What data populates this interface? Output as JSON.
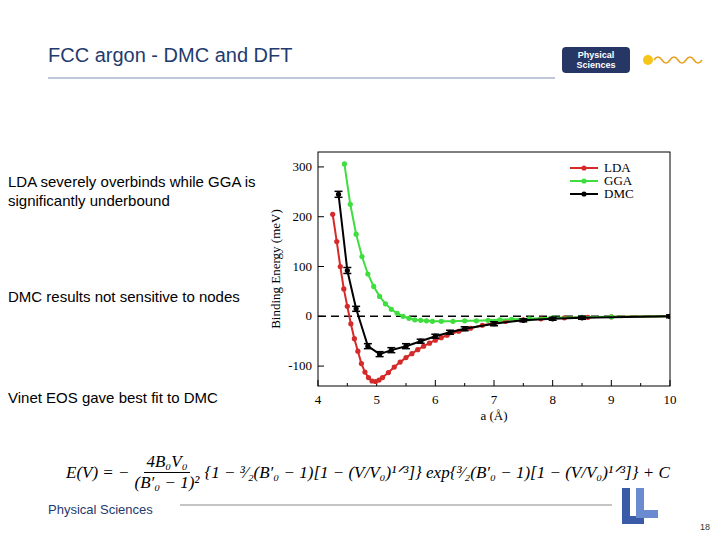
{
  "slide": {
    "title": "FCC argon - DMC and DFT",
    "logo": [
      "Physical",
      "Sciences"
    ],
    "bullets": [
      "LDA severely overbinds while GGA is significantly underbound",
      "DMC results not sensitive to nodes",
      "Vinet EOS gave best fit to DMC"
    ],
    "equation": {
      "lhs": "E(V) = −",
      "num": "4B₀V₀",
      "den": "(B′₀ − 1)²",
      "body": "{1 − ³⁄₂(B′₀ − 1)[1 − (V/V₀)¹ᐟ³]} exp{³⁄₂(B′₀ − 1)[1 − (V/V₀)¹ᐟ³]} + C"
    },
    "footer": "Physical Sciences",
    "page": 18
  },
  "chart_data": {
    "type": "line",
    "x_label": "a (Å)",
    "y_label": "Binding Energy (meV)",
    "xlim": [
      4,
      10
    ],
    "xticks": [
      4,
      5,
      6,
      7,
      8,
      9,
      10
    ],
    "ylim": [
      -140,
      330
    ],
    "yticks": [
      -100,
      0,
      100,
      200,
      300
    ],
    "hline": 0,
    "grid": false,
    "legend": "upper right",
    "series": [
      {
        "name": "LDA",
        "color": "#d42a2a",
        "marker": "circle",
        "line_style": "solid",
        "x": [
          4.25,
          4.32,
          4.38,
          4.44,
          4.5,
          4.56,
          4.62,
          4.68,
          4.74,
          4.8,
          4.86,
          4.92,
          4.98,
          5.04,
          5.1,
          5.2,
          5.3,
          5.4,
          5.5,
          5.6,
          5.7,
          5.8,
          5.9,
          6.0,
          6.1,
          6.2,
          6.4,
          6.6,
          6.8,
          7.0,
          7.2,
          7.5,
          7.8,
          8.2,
          8.6,
          9.0,
          10
        ],
        "values": [
          205,
          150,
          100,
          55,
          20,
          -15,
          -45,
          -70,
          -95,
          -112,
          -123,
          -130,
          -131,
          -128,
          -123,
          -113,
          -102,
          -92,
          -83,
          -75,
          -67,
          -60,
          -54,
          -48,
          -43,
          -38,
          -30,
          -24,
          -18,
          -14,
          -10,
          -7,
          -5,
          -3,
          -2,
          -1,
          0
        ]
      },
      {
        "name": "GGA",
        "color": "#3ede3e",
        "marker": "circle",
        "line_style": "solid",
        "x": [
          4.45,
          4.55,
          4.65,
          4.75,
          4.85,
          4.95,
          5.05,
          5.15,
          5.25,
          5.35,
          5.45,
          5.55,
          5.65,
          5.75,
          5.85,
          5.95,
          6.1,
          6.3,
          6.5,
          6.7,
          6.9,
          7.1,
          7.3,
          7.6,
          8.0,
          8.5,
          9.0,
          10
        ],
        "values": [
          306,
          225,
          165,
          120,
          85,
          60,
          40,
          25,
          14,
          6,
          0,
          -4,
          -7,
          -8,
          -9,
          -10,
          -10,
          -10,
          -9,
          -9,
          -8,
          -7,
          -6,
          -5,
          -3,
          -2,
          -1,
          0
        ]
      },
      {
        "name": "DMC",
        "color": "#000000",
        "marker": "circle",
        "line_style": "solid",
        "x": [
          4.35,
          4.5,
          4.65,
          4.85,
          5.05,
          5.25,
          5.5,
          5.75,
          6.0,
          6.25,
          6.5,
          7.0,
          7.5,
          8.0,
          8.5,
          10
        ],
        "values": [
          245,
          92,
          15,
          -60,
          -76,
          -68,
          -60,
          -50,
          -40,
          -32,
          -25,
          -15,
          -8,
          -5,
          -3,
          0
        ],
        "errors": [
          6,
          6,
          5,
          5,
          5,
          5,
          5,
          4,
          4,
          4,
          4,
          4,
          3,
          3,
          3,
          3
        ]
      }
    ]
  }
}
